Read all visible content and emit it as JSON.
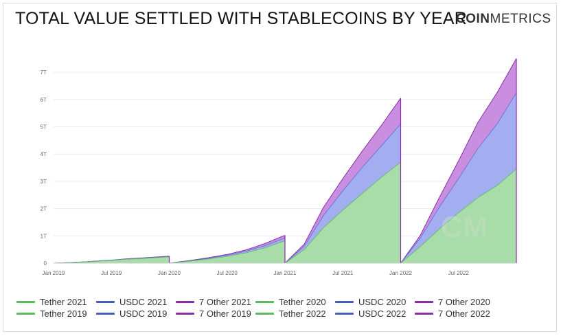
{
  "title": "TOTAL VALUE SETTLED WITH STABLECOINS BY YEAR",
  "brand": {
    "bold": "COIN",
    "light": "METRICS",
    "watermark": "CM"
  },
  "colors": {
    "tether": "#5cb85c",
    "tether_fill": "#a8dca8",
    "usdc": "#5a6fd6",
    "usdc_fill": "#a3aef0",
    "other": "#8a2ca6",
    "other_fill": "#c98ee0"
  },
  "legend": [
    {
      "label": "Tether 2021",
      "color": "#5cb85c"
    },
    {
      "label": "USDC 2021",
      "color": "#4a5cc4"
    },
    {
      "label": "7 Other 2021",
      "color": "#8a2ca6"
    },
    {
      "label": "Tether 2020",
      "color": "#5cb85c"
    },
    {
      "label": "USDC 2020",
      "color": "#4a5cc4"
    },
    {
      "label": "7 Other 2020",
      "color": "#8a2ca6"
    },
    {
      "label": "Tether 2019",
      "color": "#5cb85c"
    },
    {
      "label": "USDC 2019",
      "color": "#4a5cc4"
    },
    {
      "label": "7 Other 2019",
      "color": "#8a2ca6"
    },
    {
      "label": "Tether 2022",
      "color": "#5cb85c"
    },
    {
      "label": "USDC 2022",
      "color": "#4a5cc4"
    },
    {
      "label": "7 Other 2022",
      "color": "#8a2ca6"
    }
  ],
  "chart_data": {
    "type": "area",
    "stacked": true,
    "title": "TOTAL VALUE SETTLED WITH STABLECOINS BY YEAR",
    "xlabel": "",
    "ylabel": "",
    "ylim": [
      0,
      7.5
    ],
    "y_unit": "T",
    "yticks": [
      "0",
      "1T",
      "2T",
      "3T",
      "4T",
      "5T",
      "6T",
      "7T"
    ],
    "xticks": [
      "Jan 2019",
      "Jul 2019",
      "Jan 2020",
      "Jul 2020",
      "Jan 2021",
      "Jul 2021",
      "Jan 2022",
      "Jul 2022"
    ],
    "grid": true,
    "legend_position": "bottom",
    "x_unit": "months since Jan 2019",
    "years": [
      {
        "year": "2019",
        "start": 0,
        "x": [
          0,
          1.5,
          3,
          4.5,
          6,
          7.5,
          9,
          10.5,
          12
        ],
        "tether": [
          0,
          0.02,
          0.04,
          0.07,
          0.1,
          0.14,
          0.17,
          0.2,
          0.23
        ],
        "usdc": [
          0,
          0.001,
          0.003,
          0.005,
          0.008,
          0.01,
          0.013,
          0.016,
          0.02
        ],
        "other": [
          0,
          0.001,
          0.002,
          0.003,
          0.004,
          0.005,
          0.006,
          0.007,
          0.008
        ]
      },
      {
        "year": "2020",
        "start": 12,
        "x": [
          12,
          14,
          16,
          18,
          20,
          21,
          22,
          23,
          24
        ],
        "tether": [
          0,
          0.07,
          0.15,
          0.25,
          0.38,
          0.48,
          0.57,
          0.7,
          0.82
        ],
        "usdc": [
          0,
          0.01,
          0.025,
          0.04,
          0.06,
          0.07,
          0.08,
          0.09,
          0.1
        ],
        "other": [
          0,
          0.01,
          0.02,
          0.03,
          0.05,
          0.06,
          0.08,
          0.09,
          0.1
        ]
      },
      {
        "year": "2021",
        "start": 24,
        "x": [
          24,
          26,
          28,
          30,
          32,
          34,
          36
        ],
        "tether": [
          0,
          0.5,
          1.3,
          1.95,
          2.55,
          3.15,
          3.7
        ],
        "usdc": [
          0,
          0.12,
          0.45,
          0.7,
          0.95,
          1.15,
          1.4
        ],
        "other": [
          0,
          0.08,
          0.3,
          0.45,
          0.6,
          0.75,
          0.95
        ]
      },
      {
        "year": "2022",
        "start": 36,
        "x": [
          36,
          38,
          40,
          42,
          44,
          46,
          48
        ],
        "tether": [
          0,
          0.6,
          1.25,
          1.85,
          2.4,
          2.85,
          3.45
        ],
        "usdc": [
          0,
          0.3,
          0.8,
          1.25,
          1.8,
          2.25,
          2.8
        ],
        "other": [
          0,
          0.1,
          0.35,
          0.65,
          0.95,
          1.15,
          1.25
        ]
      }
    ]
  }
}
